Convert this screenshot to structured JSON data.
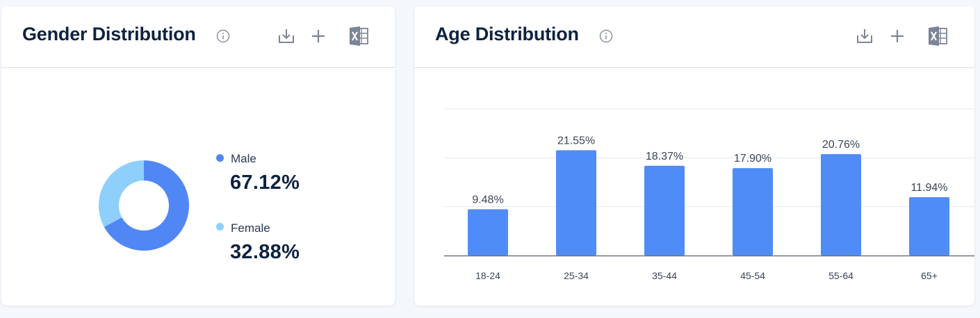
{
  "colors": {
    "male": "#5087f5",
    "female": "#8ed0fb",
    "bar": "#4f8cf7",
    "grid": "#e6e9ee",
    "axis": "#6b7280",
    "icon": "#8a93a2"
  },
  "gender_card": {
    "title": "Gender Distribution",
    "icons": [
      "info-icon",
      "download-icon",
      "plus-icon",
      "excel-icon"
    ],
    "legend": [
      {
        "label": "Male",
        "value": "67.12%"
      },
      {
        "label": "Female",
        "value": "32.88%"
      }
    ]
  },
  "age_card": {
    "title": "Age Distribution",
    "icons": [
      "info-icon",
      "download-icon",
      "plus-icon",
      "excel-icon"
    ]
  },
  "chart_data": [
    {
      "type": "pie",
      "title": "Gender Distribution",
      "categories": [
        "Male",
        "Female"
      ],
      "values": [
        67.12,
        32.88
      ],
      "unit": "%"
    },
    {
      "type": "bar",
      "title": "Age Distribution",
      "categories": [
        "18-24",
        "25-34",
        "35-44",
        "45-54",
        "55-64",
        "65+"
      ],
      "values": [
        9.48,
        21.55,
        18.37,
        17.9,
        20.76,
        11.94
      ],
      "value_labels": [
        "9.48%",
        "21.55%",
        "18.37%",
        "17.90%",
        "20.76%",
        "11.94%"
      ],
      "ylim": [
        0,
        30
      ],
      "grid": true
    }
  ]
}
